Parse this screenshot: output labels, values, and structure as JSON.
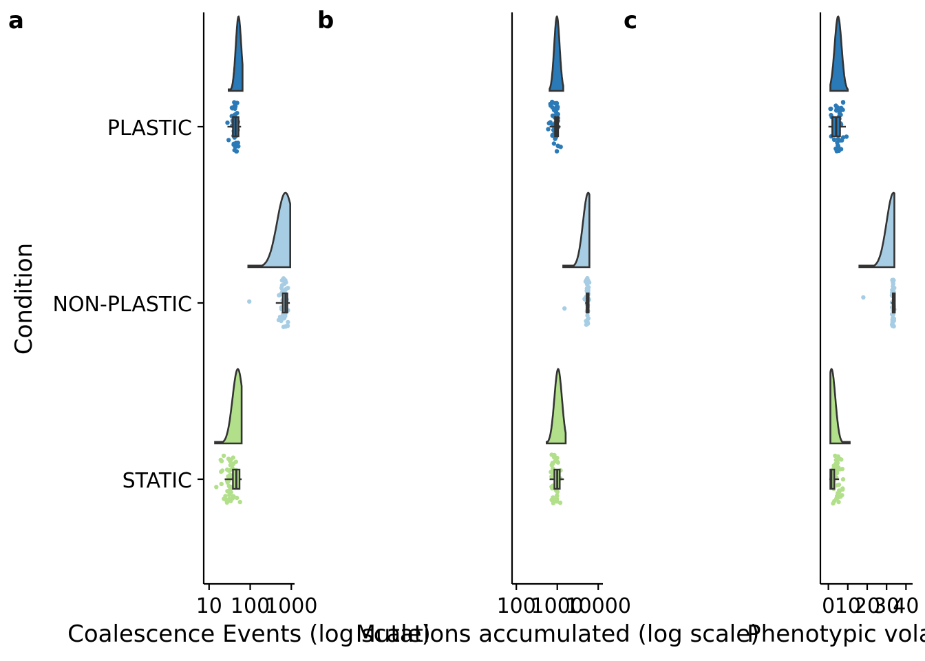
{
  "figure": {
    "y_axis_title": "Condition",
    "conditions": [
      "PLASTIC",
      "NON-PLASTIC",
      "STATIC"
    ],
    "condition_colors": {
      "PLASTIC": "#2a7ab8",
      "NON-PLASTIC": "#a6cde3",
      "STATIC": "#b2df8a"
    }
  },
  "chart_data": [
    {
      "type": "raincloud",
      "panel": "a",
      "xlabel": "Coalescence Events (log scale)",
      "ylabel": "Condition",
      "x_scale": "log10",
      "xlim": [
        8,
        1200
      ],
      "x_ticks": [
        10,
        100,
        1000
      ],
      "x_tick_labels": [
        "10",
        "100",
        "1000"
      ],
      "categories": [
        "PLASTIC",
        "NON-PLASTIC",
        "STATIC"
      ],
      "series": [
        {
          "name": "PLASTIC",
          "density_range": [
            30,
            65
          ],
          "density_mode": 52,
          "q1": 38,
          "median": 44,
          "q3": 52,
          "whisker_low": 28,
          "whisker_high": 60,
          "points_range": [
            28,
            62
          ],
          "outliers": [
            28
          ]
        },
        {
          "name": "NON-PLASTIC",
          "density_range": [
            90,
            940
          ],
          "density_mode": 720,
          "q1": 620,
          "median": 720,
          "q3": 800,
          "whisker_low": 420,
          "whisker_high": 920,
          "points_range": [
            460,
            930
          ],
          "outliers": [
            95
          ]
        },
        {
          "name": "STATIC",
          "density_range": [
            14,
            62
          ],
          "density_mode": 50,
          "q1": 38,
          "median": 46,
          "q3": 55,
          "whisker_low": 24,
          "whisker_high": 62,
          "points_range": [
            15,
            62
          ],
          "outliers": [
            15,
            20
          ]
        }
      ]
    },
    {
      "type": "raincloud",
      "panel": "b",
      "xlabel": "Mutations accumulated (log scale)",
      "ylabel": "",
      "x_scale": "log10",
      "xlim": [
        85,
        13000
      ],
      "x_ticks": [
        100,
        1000,
        10000
      ],
      "x_tick_labels": [
        "100",
        "1000",
        "10000"
      ],
      "categories": [
        "PLASTIC",
        "NON-PLASTIC",
        "STATIC"
      ],
      "series": [
        {
          "name": "PLASTIC",
          "density_range": [
            650,
            1400
          ],
          "density_mode": 980,
          "q1": 880,
          "median": 960,
          "q3": 1050,
          "whisker_low": 650,
          "whisker_high": 1200,
          "points_range": [
            600,
            1300
          ],
          "outliers": [
            600
          ]
        },
        {
          "name": "NON-PLASTIC",
          "density_range": [
            1400,
            6100
          ],
          "density_mode": 5700,
          "q1": 5200,
          "median": 5500,
          "q3": 5800,
          "whisker_low": 4800,
          "whisker_high": 6100,
          "points_range": [
            4700,
            6200
          ],
          "outliers": [
            1500
          ]
        },
        {
          "name": "STATIC",
          "density_range": [
            550,
            1600
          ],
          "density_mode": 1050,
          "q1": 850,
          "median": 1000,
          "q3": 1150,
          "whisker_low": 650,
          "whisker_high": 1450,
          "points_range": [
            550,
            1500
          ],
          "outliers": []
        }
      ]
    },
    {
      "type": "raincloud",
      "panel": "c",
      "xlabel": "Phenotypic volatility",
      "ylabel": "",
      "x_scale": "linear",
      "xlim": [
        -2,
        42
      ],
      "x_ticks": [
        0,
        10,
        20,
        30,
        40
      ],
      "x_tick_labels": [
        "0",
        "10",
        "20",
        "30",
        "40"
      ],
      "categories": [
        "PLASTIC",
        "NON-PLASTIC",
        "STATIC"
      ],
      "series": [
        {
          "name": "PLASTIC",
          "density_range": [
            1,
            10
          ],
          "density_mode": 5,
          "q1": 2,
          "median": 4,
          "q3": 6,
          "whisker_low": 0,
          "whisker_high": 9,
          "points_range": [
            0,
            10
          ],
          "outliers": []
        },
        {
          "name": "NON-PLASTIC",
          "density_range": [
            16,
            34
          ],
          "density_mode": 33.6,
          "q1": 33.2,
          "median": 33.5,
          "q3": 33.8,
          "whisker_low": 32.5,
          "whisker_high": 34,
          "points_range": [
            32.5,
            34.2
          ],
          "outliers": [
            18
          ]
        },
        {
          "name": "STATIC",
          "density_range": [
            1,
            11
          ],
          "density_mode": 1.6,
          "q1": 1,
          "median": 1.5,
          "q3": 3,
          "whisker_low": 0.5,
          "whisker_high": 5.5,
          "points_range": [
            0.5,
            9
          ],
          "outliers": []
        }
      ]
    }
  ]
}
